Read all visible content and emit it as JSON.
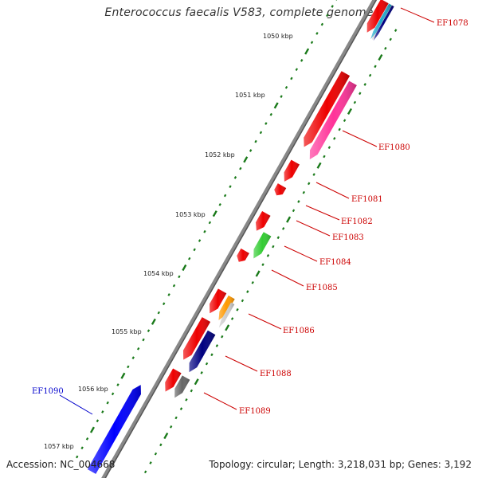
{
  "title": "Enterococcus faecalis V583, complete genome",
  "footer": {
    "accession": "Accession: NC_004668",
    "summary": "Topology: circular; Length: 3,218,031 bp; Genes: 3,192"
  },
  "scale_labels": [
    "1050 kbp",
    "1051 kbp",
    "1052 kbp",
    "1053 kbp",
    "1054 kbp",
    "1055 kbp",
    "1056 kbp",
    "1057 kbp"
  ],
  "colors": {
    "forward_label": "#cc0000",
    "reverse_label": "#0000cc",
    "backbone": "#888888",
    "tick": "#1a7a1a",
    "red": "#ee0000",
    "magenta": "#ff3399",
    "green": "#33cc33",
    "orange": "#ff9900",
    "navy": "#000080",
    "grey": "#666666",
    "blue": "#0000ff",
    "light_grey": "#cccccc",
    "cyan": "#22aacc"
  },
  "genes": [
    {
      "label": "EF1078",
      "strand": "forward"
    },
    {
      "label": "EF1080",
      "strand": "forward"
    },
    {
      "label": "EF1081",
      "strand": "forward"
    },
    {
      "label": "EF1082",
      "strand": "forward"
    },
    {
      "label": "EF1083",
      "strand": "forward"
    },
    {
      "label": "EF1084",
      "strand": "forward"
    },
    {
      "label": "EF1085",
      "strand": "forward"
    },
    {
      "label": "EF1086",
      "strand": "forward"
    },
    {
      "label": "EF1088",
      "strand": "forward"
    },
    {
      "label": "EF1089",
      "strand": "forward"
    },
    {
      "label": "EF1090",
      "strand": "reverse"
    }
  ]
}
